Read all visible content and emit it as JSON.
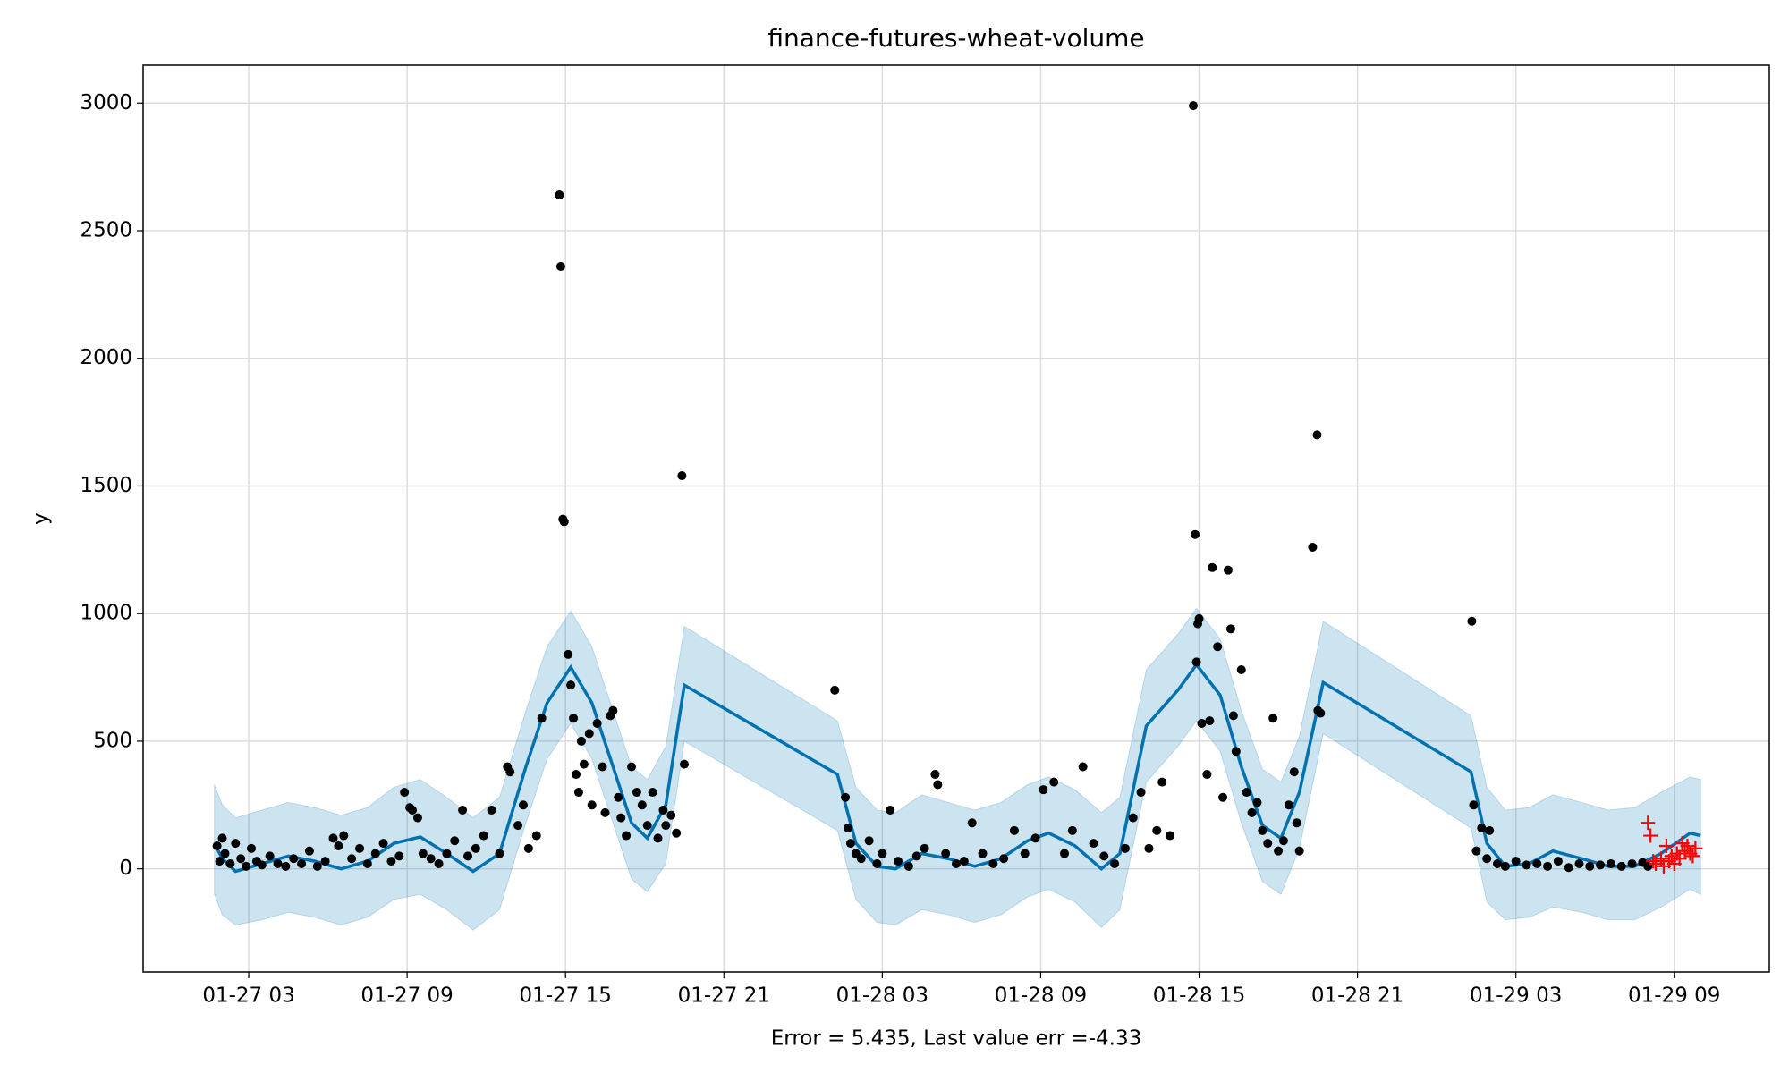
{
  "chart_data": {
    "type": "line",
    "title": "finance-futures-wheat-volume",
    "xlabel": "Error = 5.435, Last value err =-4.33",
    "ylabel": "y",
    "xlim": [
      -1,
      60.6
    ],
    "ylim": [
      -404,
      3148
    ],
    "xticks": [
      {
        "value": 3,
        "label": "01-27 03"
      },
      {
        "value": 9,
        "label": "01-27 09"
      },
      {
        "value": 15,
        "label": "01-27 15"
      },
      {
        "value": 21,
        "label": "01-27 21"
      },
      {
        "value": 27,
        "label": "01-28 03"
      },
      {
        "value": 33,
        "label": "01-28 09"
      },
      {
        "value": 39,
        "label": "01-28 15"
      },
      {
        "value": 45,
        "label": "01-28 21"
      },
      {
        "value": 51,
        "label": "01-29 03"
      },
      {
        "value": 57,
        "label": "01-29 09"
      }
    ],
    "yticks": [
      0,
      500,
      1000,
      1500,
      2000,
      2500,
      3000
    ],
    "grid": true,
    "series": [
      {
        "type": "line",
        "color": "#0072b2",
        "band_color": "#0072b2",
        "band_opacity": 0.2,
        "x": [
          1.7,
          2.0,
          2.5,
          3.5,
          4.5,
          5.5,
          6.5,
          7.5,
          8.5,
          9.5,
          10.5,
          11.5,
          12.5,
          13.5,
          14.3,
          15.2,
          16.0,
          16.8,
          17.5,
          18.1,
          18.8,
          19.5,
          25.3,
          26.0,
          26.8,
          27.5,
          28.5,
          29.5,
          30.5,
          31.5,
          32.5,
          33.3,
          34.3,
          35.3,
          36.0,
          37.0,
          38.2,
          38.9,
          39.8,
          40.6,
          41.4,
          42.1,
          42.8,
          43.7,
          49.3,
          49.9,
          50.6,
          51.5,
          52.4,
          53.5,
          54.5,
          55.5,
          56.5,
          57.6,
          58.0
        ],
        "values": [
          100,
          40,
          -10,
          20,
          50,
          30,
          0,
          30,
          100,
          125,
          60,
          -10,
          60,
          400,
          650,
          790,
          650,
          400,
          180,
          120,
          250,
          720,
          370,
          100,
          10,
          0,
          60,
          40,
          10,
          40,
          110,
          140,
          90,
          0,
          60,
          560,
          700,
          800,
          680,
          400,
          170,
          120,
          300,
          730,
          380,
          100,
          10,
          20,
          70,
          40,
          10,
          10,
          60,
          140,
          130
        ],
        "lower": [
          -100,
          -180,
          -220,
          -200,
          -170,
          -190,
          -220,
          -190,
          -120,
          -100,
          -160,
          -240,
          -160,
          180,
          430,
          570,
          430,
          180,
          -40,
          -90,
          20,
          500,
          150,
          -120,
          -210,
          -220,
          -160,
          -180,
          -210,
          -180,
          -110,
          -80,
          -130,
          -230,
          -160,
          340,
          480,
          580,
          460,
          180,
          -50,
          -100,
          80,
          530,
          160,
          -130,
          -200,
          -190,
          -150,
          -170,
          -200,
          -200,
          -150,
          -80,
          -100
        ],
        "upper": [
          330,
          250,
          200,
          230,
          260,
          240,
          210,
          240,
          320,
          350,
          280,
          200,
          280,
          620,
          870,
          1010,
          870,
          620,
          400,
          350,
          480,
          950,
          580,
          320,
          230,
          220,
          290,
          260,
          230,
          260,
          330,
          360,
          310,
          220,
          280,
          780,
          920,
          1020,
          900,
          620,
          390,
          340,
          520,
          970,
          600,
          320,
          230,
          240,
          290,
          260,
          230,
          240,
          300,
          360,
          350
        ]
      },
      {
        "type": "scatter",
        "marker": "dot",
        "color": "#000000",
        "x": [
          1.8,
          1.9,
          2.0,
          2.1,
          2.3,
          2.5,
          2.7,
          2.9,
          3.1,
          3.3,
          3.5,
          3.8,
          4.1,
          4.4,
          4.7,
          5.0,
          5.3,
          5.6,
          5.9,
          6.2,
          6.4,
          6.6,
          6.9,
          7.2,
          7.5,
          7.8,
          8.1,
          8.4,
          8.7,
          8.9,
          9.1,
          9.2,
          9.4,
          9.6,
          9.9,
          10.2,
          10.5,
          10.8,
          11.1,
          11.3,
          11.6,
          11.9,
          12.2,
          12.5,
          12.8,
          12.9,
          13.2,
          13.4,
          13.6,
          13.9,
          14.1,
          14.77,
          14.82,
          14.9,
          14.95,
          15.1,
          15.2,
          15.3,
          15.4,
          15.5,
          15.6,
          15.7,
          15.9,
          16.0,
          16.2,
          16.4,
          16.5,
          16.7,
          16.8,
          17.0,
          17.1,
          17.3,
          17.5,
          17.7,
          17.9,
          18.1,
          18.3,
          18.5,
          18.7,
          18.8,
          19.0,
          19.2,
          19.41,
          19.5,
          25.2,
          25.6,
          25.7,
          25.8,
          26.0,
          26.2,
          26.5,
          26.8,
          27.0,
          27.3,
          27.6,
          28.0,
          28.3,
          28.6,
          29.0,
          29.1,
          29.4,
          29.8,
          30.1,
          30.4,
          30.8,
          31.2,
          31.6,
          32.0,
          32.4,
          32.8,
          33.1,
          33.5,
          33.9,
          34.2,
          34.6,
          35.0,
          35.4,
          35.8,
          36.2,
          36.5,
          36.8,
          37.1,
          37.4,
          37.6,
          37.9,
          38.78,
          38.85,
          38.9,
          38.95,
          39.0,
          39.1,
          39.3,
          39.4,
          39.5,
          39.7,
          39.9,
          40.1,
          40.2,
          40.3,
          40.4,
          40.6,
          40.8,
          41.0,
          41.2,
          41.4,
          41.6,
          41.8,
          42.0,
          42.2,
          42.4,
          42.6,
          42.7,
          42.8,
          43.3,
          43.47,
          43.5,
          43.6,
          49.33,
          49.4,
          49.5,
          49.7,
          49.9,
          50.0,
          50.3,
          50.6,
          51.0,
          51.4,
          51.8,
          52.2,
          52.6,
          53.0,
          53.4,
          53.8,
          54.2,
          54.6,
          55.0,
          55.4,
          55.8,
          56.0
        ],
        "values": [
          90,
          30,
          120,
          60,
          20,
          100,
          40,
          10,
          80,
          30,
          15,
          50,
          20,
          10,
          40,
          20,
          70,
          10,
          30,
          120,
          90,
          130,
          40,
          80,
          20,
          60,
          100,
          30,
          50,
          300,
          240,
          230,
          200,
          60,
          40,
          20,
          60,
          110,
          230,
          50,
          80,
          130,
          230,
          60,
          400,
          380,
          170,
          250,
          80,
          130,
          590,
          2640,
          2360,
          1370,
          1360,
          840,
          720,
          590,
          370,
          300,
          500,
          410,
          530,
          250,
          570,
          400,
          220,
          600,
          620,
          280,
          200,
          130,
          400,
          300,
          250,
          170,
          300,
          120,
          230,
          170,
          210,
          140,
          1540,
          410,
          700,
          280,
          160,
          100,
          60,
          40,
          110,
          20,
          60,
          230,
          30,
          10,
          50,
          80,
          370,
          330,
          60,
          20,
          30,
          180,
          60,
          20,
          40,
          150,
          60,
          120,
          310,
          340,
          60,
          150,
          400,
          100,
          50,
          20,
          80,
          200,
          300,
          80,
          150,
          340,
          130,
          2990,
          1310,
          810,
          960,
          980,
          570,
          370,
          580,
          1180,
          870,
          280,
          1170,
          940,
          600,
          460,
          780,
          300,
          220,
          260,
          150,
          100,
          590,
          70,
          110,
          250,
          380,
          180,
          70,
          1260,
          1700,
          620,
          610,
          970,
          250,
          70,
          160,
          40,
          150,
          20,
          10,
          30,
          15,
          20,
          10,
          30,
          5,
          20,
          10,
          15,
          20,
          10,
          20,
          25,
          10
        ]
      },
      {
        "type": "scatter",
        "marker": "plus",
        "color": "#ff0000",
        "x": [
          56.0,
          56.1,
          56.2,
          56.3,
          56.5,
          56.6,
          56.7,
          56.8,
          56.9,
          57.0,
          57.1,
          57.2,
          57.3,
          57.4,
          57.5,
          57.6,
          57.7,
          57.8
        ],
        "values": [
          180,
          130,
          30,
          20,
          40,
          10,
          90,
          30,
          50,
          20,
          60,
          40,
          100,
          70,
          90,
          60,
          50,
          80
        ]
      }
    ]
  }
}
